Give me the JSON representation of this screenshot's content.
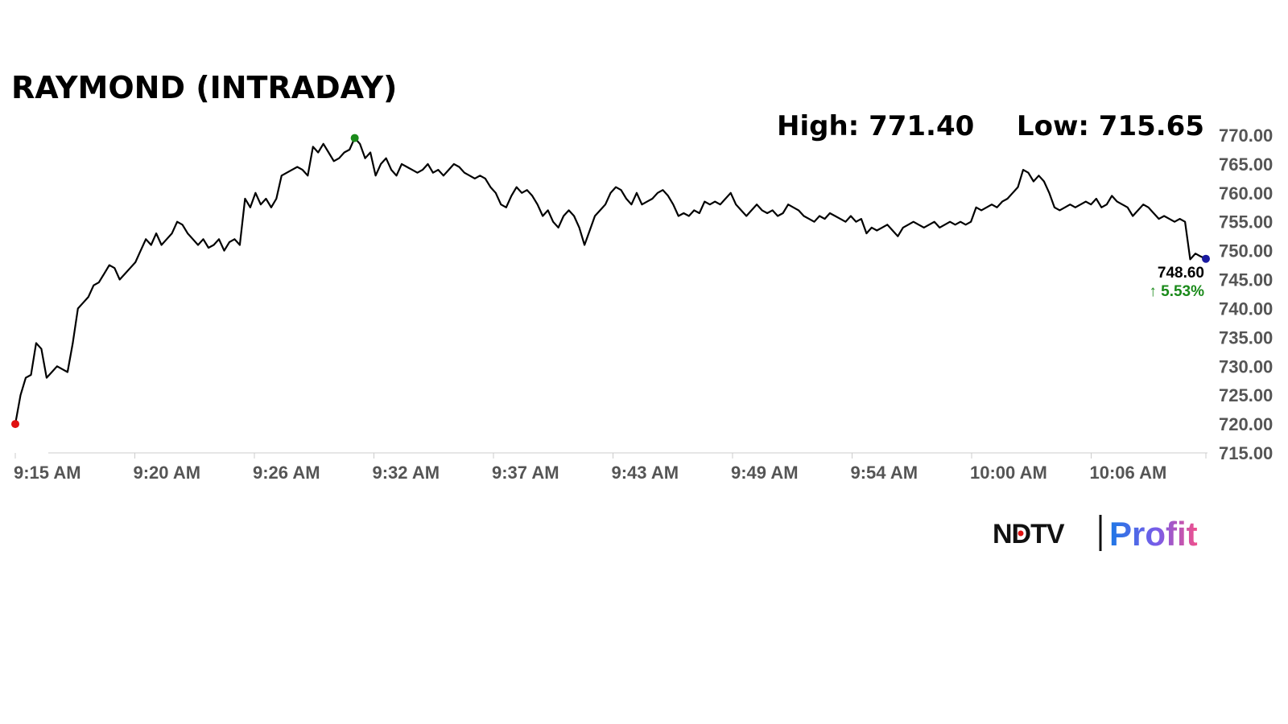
{
  "chart_data": {
    "type": "line",
    "title": "RAYMOND (INTRADAY)",
    "high_label": "High: 771.40",
    "low_label": "Low: 715.65",
    "last_price": "748.60",
    "change": "5.53%",
    "change_arrow": "↑",
    "ylim": [
      715,
      770
    ],
    "y_ticks": [
      "715.00",
      "720.00",
      "725.00",
      "730.00",
      "735.00",
      "740.00",
      "745.00",
      "750.00",
      "755.00",
      "760.00",
      "765.00",
      "770.00"
    ],
    "x_ticks": [
      "9:15 AM",
      "9:20 AM",
      "9:26 AM",
      "9:32 AM",
      "9:37 AM",
      "9:43 AM",
      "9:49 AM",
      "9:54 AM",
      "10:00 AM",
      "10:06 AM"
    ],
    "grid": false,
    "series": [
      {
        "values": [
          720,
          725,
          728,
          728.5,
          734,
          733,
          728,
          729,
          730,
          729.5,
          729,
          734,
          740,
          741,
          742,
          744,
          744.5,
          746,
          747.5,
          747,
          745,
          746,
          747,
          748,
          750,
          752,
          751,
          753,
          751,
          752,
          753,
          755,
          754.5,
          753,
          752,
          751,
          752,
          750.5,
          751,
          752,
          750,
          751.5,
          752,
          751,
          759,
          757.5,
          760,
          758,
          759,
          757.5,
          759,
          763,
          763.5,
          764,
          764.5,
          764,
          763,
          768,
          767,
          768.5,
          767,
          765.5,
          766,
          767,
          767.5,
          769.5,
          768.5,
          766,
          767,
          763,
          765,
          766,
          764,
          763,
          765,
          764.5,
          764,
          763.5,
          764,
          765,
          763.5,
          764,
          763,
          764,
          765,
          764.5,
          763.5,
          763,
          762.5,
          763,
          762.5,
          761,
          760,
          758,
          757.5,
          759.5,
          761,
          760,
          760.5,
          759.5,
          758,
          756,
          757,
          755,
          754,
          756,
          757,
          756,
          754,
          751,
          753.5,
          756,
          757,
          758,
          760,
          761,
          760.5,
          759,
          758,
          760,
          758,
          758.5,
          759,
          760,
          760.5,
          759.5,
          758,
          756,
          756.5,
          756,
          757,
          756.5,
          758.5,
          758,
          758.5,
          758,
          759,
          760,
          758,
          757,
          756,
          757,
          758,
          757,
          756.5,
          757,
          756,
          756.5,
          758,
          757.5,
          757,
          756,
          755.5,
          755,
          756,
          755.5,
          756.5,
          756,
          755.5,
          755,
          756,
          755,
          755.5,
          753,
          754,
          753.5,
          754,
          754.5,
          753.5,
          752.5,
          754,
          754.5,
          755,
          754.5,
          754,
          754.5,
          755,
          754,
          754.5,
          755,
          754.5,
          755,
          754.5,
          755,
          757.5,
          757,
          757.5,
          758,
          757.5,
          758.5,
          759,
          760,
          761,
          764,
          763.5,
          762,
          763,
          762,
          760,
          757.5,
          757,
          757.5,
          758,
          757.5,
          758,
          758.5,
          758,
          759,
          757.5,
          758,
          759.5,
          758.5,
          758,
          757.5,
          756,
          757,
          758,
          757.5,
          756.5,
          755.5,
          756,
          755.5,
          755,
          755.5,
          755,
          748.5,
          749.5,
          749,
          748.6
        ]
      }
    ]
  },
  "logo": {
    "left": "NDTV",
    "right": "Profit"
  },
  "colors": {
    "line": "#000000",
    "low_marker": "#e01010",
    "high_marker": "#1a8a1a",
    "last_marker": "#1a1aa0",
    "change_up": "#1a8a1a",
    "axis": "#cccccc"
  }
}
